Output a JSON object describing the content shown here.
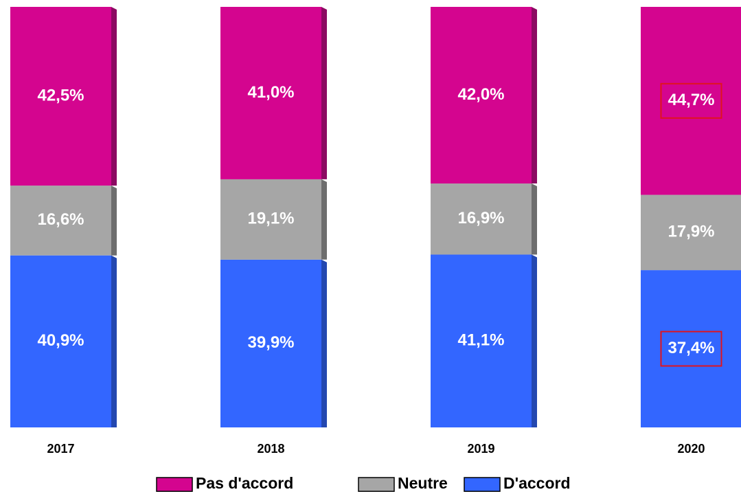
{
  "chart_data": {
    "type": "stacked_bar",
    "categories": [
      "2017",
      "2018",
      "2019",
      "2020"
    ],
    "series": [
      {
        "name": "Pas d'accord",
        "color": "#d4058f",
        "side_color": "#8c0a62",
        "values": [
          42.5,
          41.0,
          42.0,
          44.7
        ],
        "value_labels": [
          "42,5%",
          "41,0%",
          "42,0%",
          "44,7%"
        ]
      },
      {
        "name": "Neutre",
        "color": "#a6a6a6",
        "side_color": "#6e6e6e",
        "values": [
          16.6,
          19.1,
          16.9,
          17.9
        ],
        "value_labels": [
          "16,6%",
          "19,1%",
          "16,9%",
          "17,9%"
        ]
      },
      {
        "name": "D'accord",
        "color": "#3366ff",
        "side_color": "#2448b0",
        "values": [
          40.9,
          39.9,
          41.1,
          37.4
        ],
        "value_labels": [
          "40,9%",
          "39,9%",
          "41,1%",
          "37,4%"
        ]
      }
    ],
    "legend": "bottom"
  }
}
